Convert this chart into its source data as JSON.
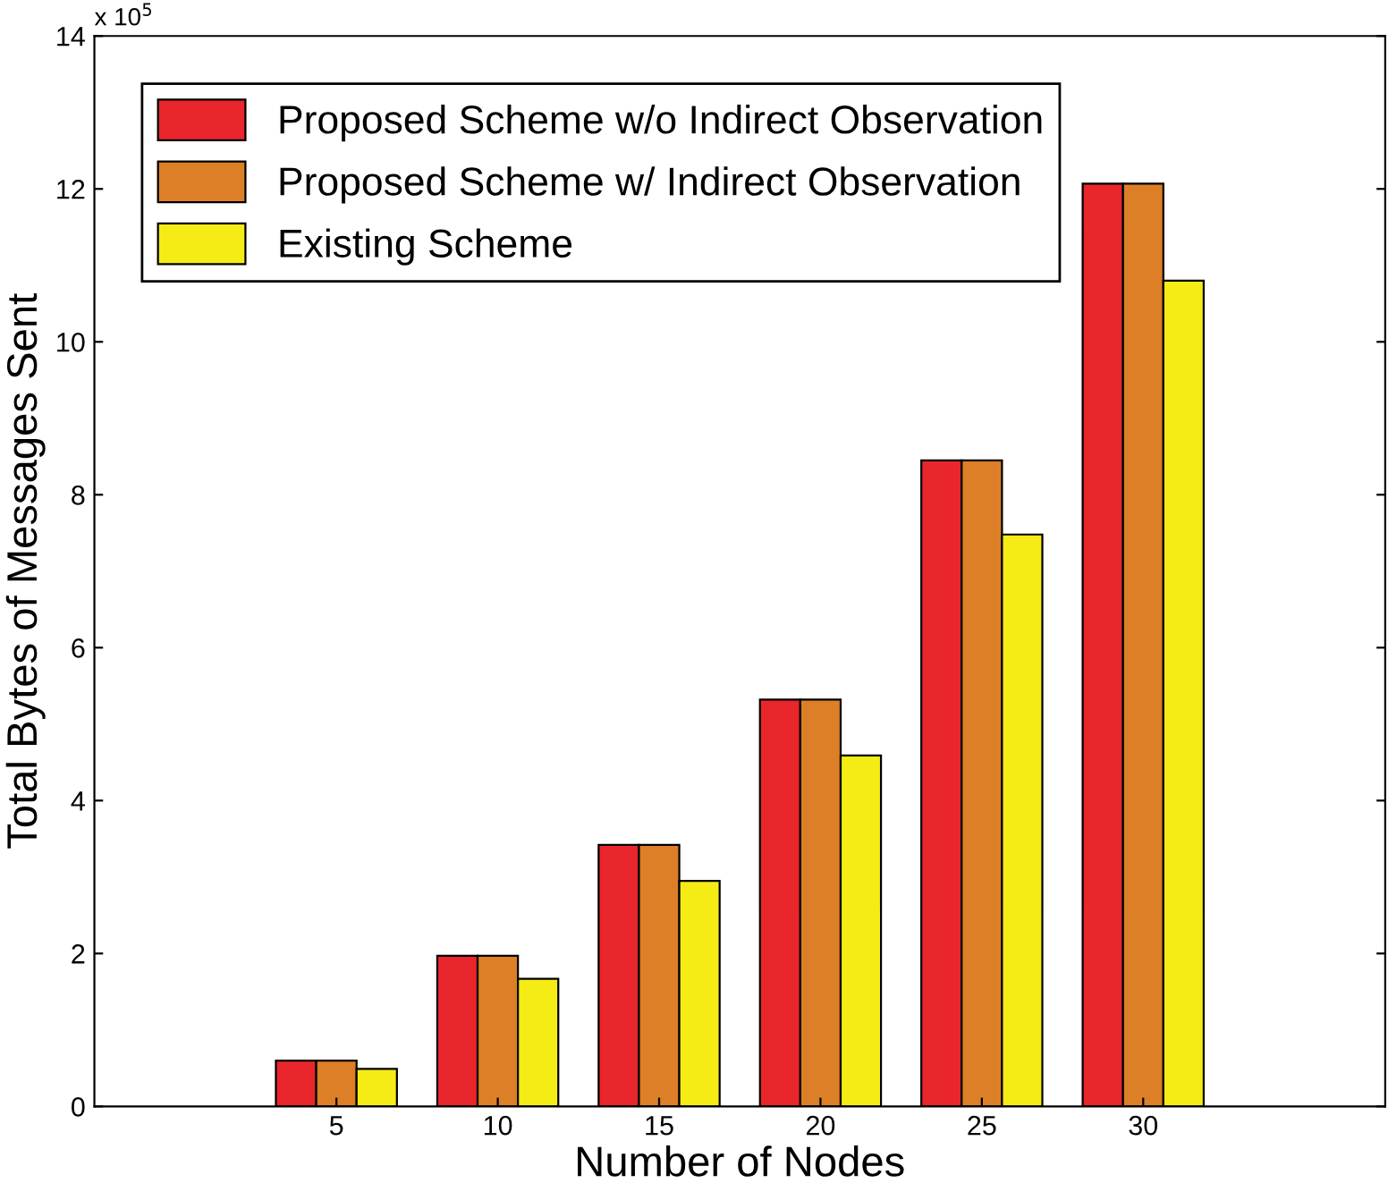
{
  "chart_data": {
    "type": "bar",
    "xlabel": "Number of Nodes",
    "ylabel": "Total Bytes of Messages Sent",
    "categories": [
      "5",
      "10",
      "15",
      "20",
      "25",
      "30"
    ],
    "series": [
      {
        "name": "Proposed Scheme w/o Indirect Observation",
        "color": "#e8262b",
        "values": [
          0.6,
          1.97,
          3.42,
          5.32,
          8.45,
          12.07
        ]
      },
      {
        "name": "Proposed Scheme w/ Indirect Observation",
        "color": "#dd7f27",
        "values": [
          0.6,
          1.97,
          3.42,
          5.32,
          8.45,
          12.07
        ]
      },
      {
        "name": "Existing Scheme",
        "color": "#f5ec16",
        "values": [
          0.49,
          1.67,
          2.95,
          4.59,
          7.48,
          10.8
        ]
      }
    ],
    "ylim": [
      0,
      14
    ],
    "yticks": [
      0,
      2,
      4,
      6,
      8,
      10,
      12,
      14
    ],
    "annotations": [
      "x 10$^{5}$"
    ],
    "legend": "top left",
    "grid": false
  }
}
